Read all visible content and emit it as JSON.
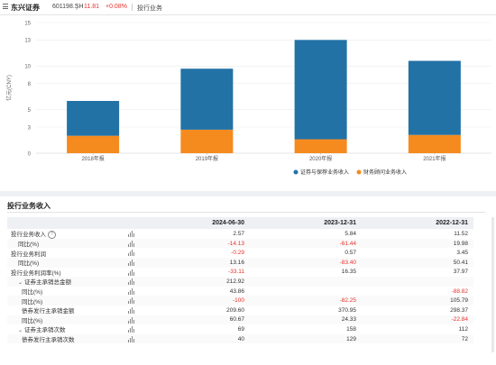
{
  "header": {
    "stock_name": "东兴证券",
    "stock_code": "601198.SH",
    "chevron": "〉",
    "price": "11.81",
    "change_pct": "+0.08%",
    "breadcrumb": "投行业务"
  },
  "chart_data": {
    "type": "bar",
    "stacked": true,
    "categories": [
      "2018年报",
      "2019年报",
      "2020年报",
      "2021年报"
    ],
    "series": [
      {
        "name": "证券与保荐业务收入",
        "color": "#2272a6",
        "values": [
          4.0,
          7.0,
          11.4,
          8.5
        ]
      },
      {
        "name": "财务顾问业务收入",
        "color": "#f58a1f",
        "values": [
          2.0,
          2.7,
          1.6,
          2.1
        ]
      }
    ],
    "ylabel": "亿元(CNY)",
    "yticks": [
      0,
      3,
      5,
      8,
      10,
      13,
      15
    ],
    "ylim": [
      0,
      15
    ],
    "grid": true,
    "legend_position": "bottom-right"
  },
  "section": {
    "title": "投行业务收入"
  },
  "table": {
    "columns": [
      "2024-06-30",
      "2023-12-31",
      "2022-12-31"
    ],
    "rows": [
      {
        "label": "投行业务收入",
        "indent": 0,
        "help": true,
        "values": [
          "2.57",
          "5.84",
          "11.52"
        ]
      },
      {
        "label": "同比(%)",
        "indent": 1,
        "values": [
          "-14.13",
          "-61.44",
          "19.98"
        ]
      },
      {
        "label": "投行业务利润",
        "indent": 0,
        "values": [
          "-0.29",
          "0.57",
          "3.45"
        ]
      },
      {
        "label": "同比(%)",
        "indent": 1,
        "values": [
          "13.16",
          "-83.40",
          "50.41"
        ]
      },
      {
        "label": "投行业务利润率(%)",
        "indent": 0,
        "values": [
          "-33.11",
          "16.35",
          "37.97"
        ]
      },
      {
        "label": "证券主承销总金额",
        "indent": 1,
        "toggle": "⌄",
        "values": [
          "212.92",
          "",
          ""
        ]
      },
      {
        "label": "同比(%)",
        "indent": 2,
        "values": [
          "43.86",
          "",
          "-88.82"
        ]
      },
      {
        "label": "同比(%)",
        "indent": 2,
        "values": [
          "-100",
          "-82.25",
          "105.79"
        ]
      },
      {
        "label": "债券发行主承销金额",
        "indent": 2,
        "values": [
          "209.60",
          "370.95",
          "298.37"
        ]
      },
      {
        "label": "同比(%)",
        "indent": 2,
        "values": [
          "60.67",
          "24.33",
          "-22.84"
        ]
      },
      {
        "label": "证券主承销次数",
        "indent": 1,
        "toggle": "⌄",
        "values": [
          "69",
          "158",
          "112"
        ]
      },
      {
        "label": "债券发行主承销次数",
        "indent": 2,
        "values": [
          "40",
          "129",
          "72"
        ]
      }
    ]
  }
}
